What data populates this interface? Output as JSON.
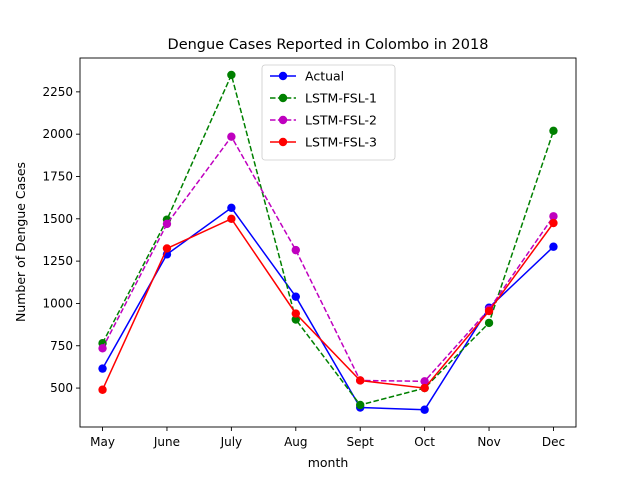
{
  "chart_data": {
    "type": "line",
    "title": "Dengue Cases Reported in Colombo in 2018",
    "xlabel": "month",
    "ylabel": "Number of Dengue Cases",
    "categories": [
      "May",
      "June",
      "July",
      "Aug",
      "Sept",
      "Oct",
      "Nov",
      "Dec"
    ],
    "ylim": [
      270,
      2450
    ],
    "yticks": [
      500,
      750,
      1000,
      1250,
      1500,
      1750,
      2000,
      2250
    ],
    "grid": false,
    "legend_position": "top-center",
    "series": [
      {
        "name": "Actual",
        "color": "#0000ff",
        "style": "solid",
        "values": [
          615,
          1290,
          1565,
          1040,
          385,
          372,
          975,
          1335
        ]
      },
      {
        "name": "LSTM-FSL-1",
        "color": "#008000",
        "style": "dashed",
        "values": [
          765,
          1495,
          2350,
          905,
          400,
          500,
          885,
          2020
        ]
      },
      {
        "name": "LSTM-FSL-2",
        "color": "#bf00bf",
        "style": "dashed",
        "values": [
          735,
          1470,
          1985,
          1315,
          545,
          540,
          965,
          1515
        ]
      },
      {
        "name": "LSTM-FSL-3",
        "color": "#ff0000",
        "style": "solid",
        "values": [
          490,
          1325,
          1500,
          940,
          545,
          500,
          955,
          1475
        ]
      }
    ]
  }
}
